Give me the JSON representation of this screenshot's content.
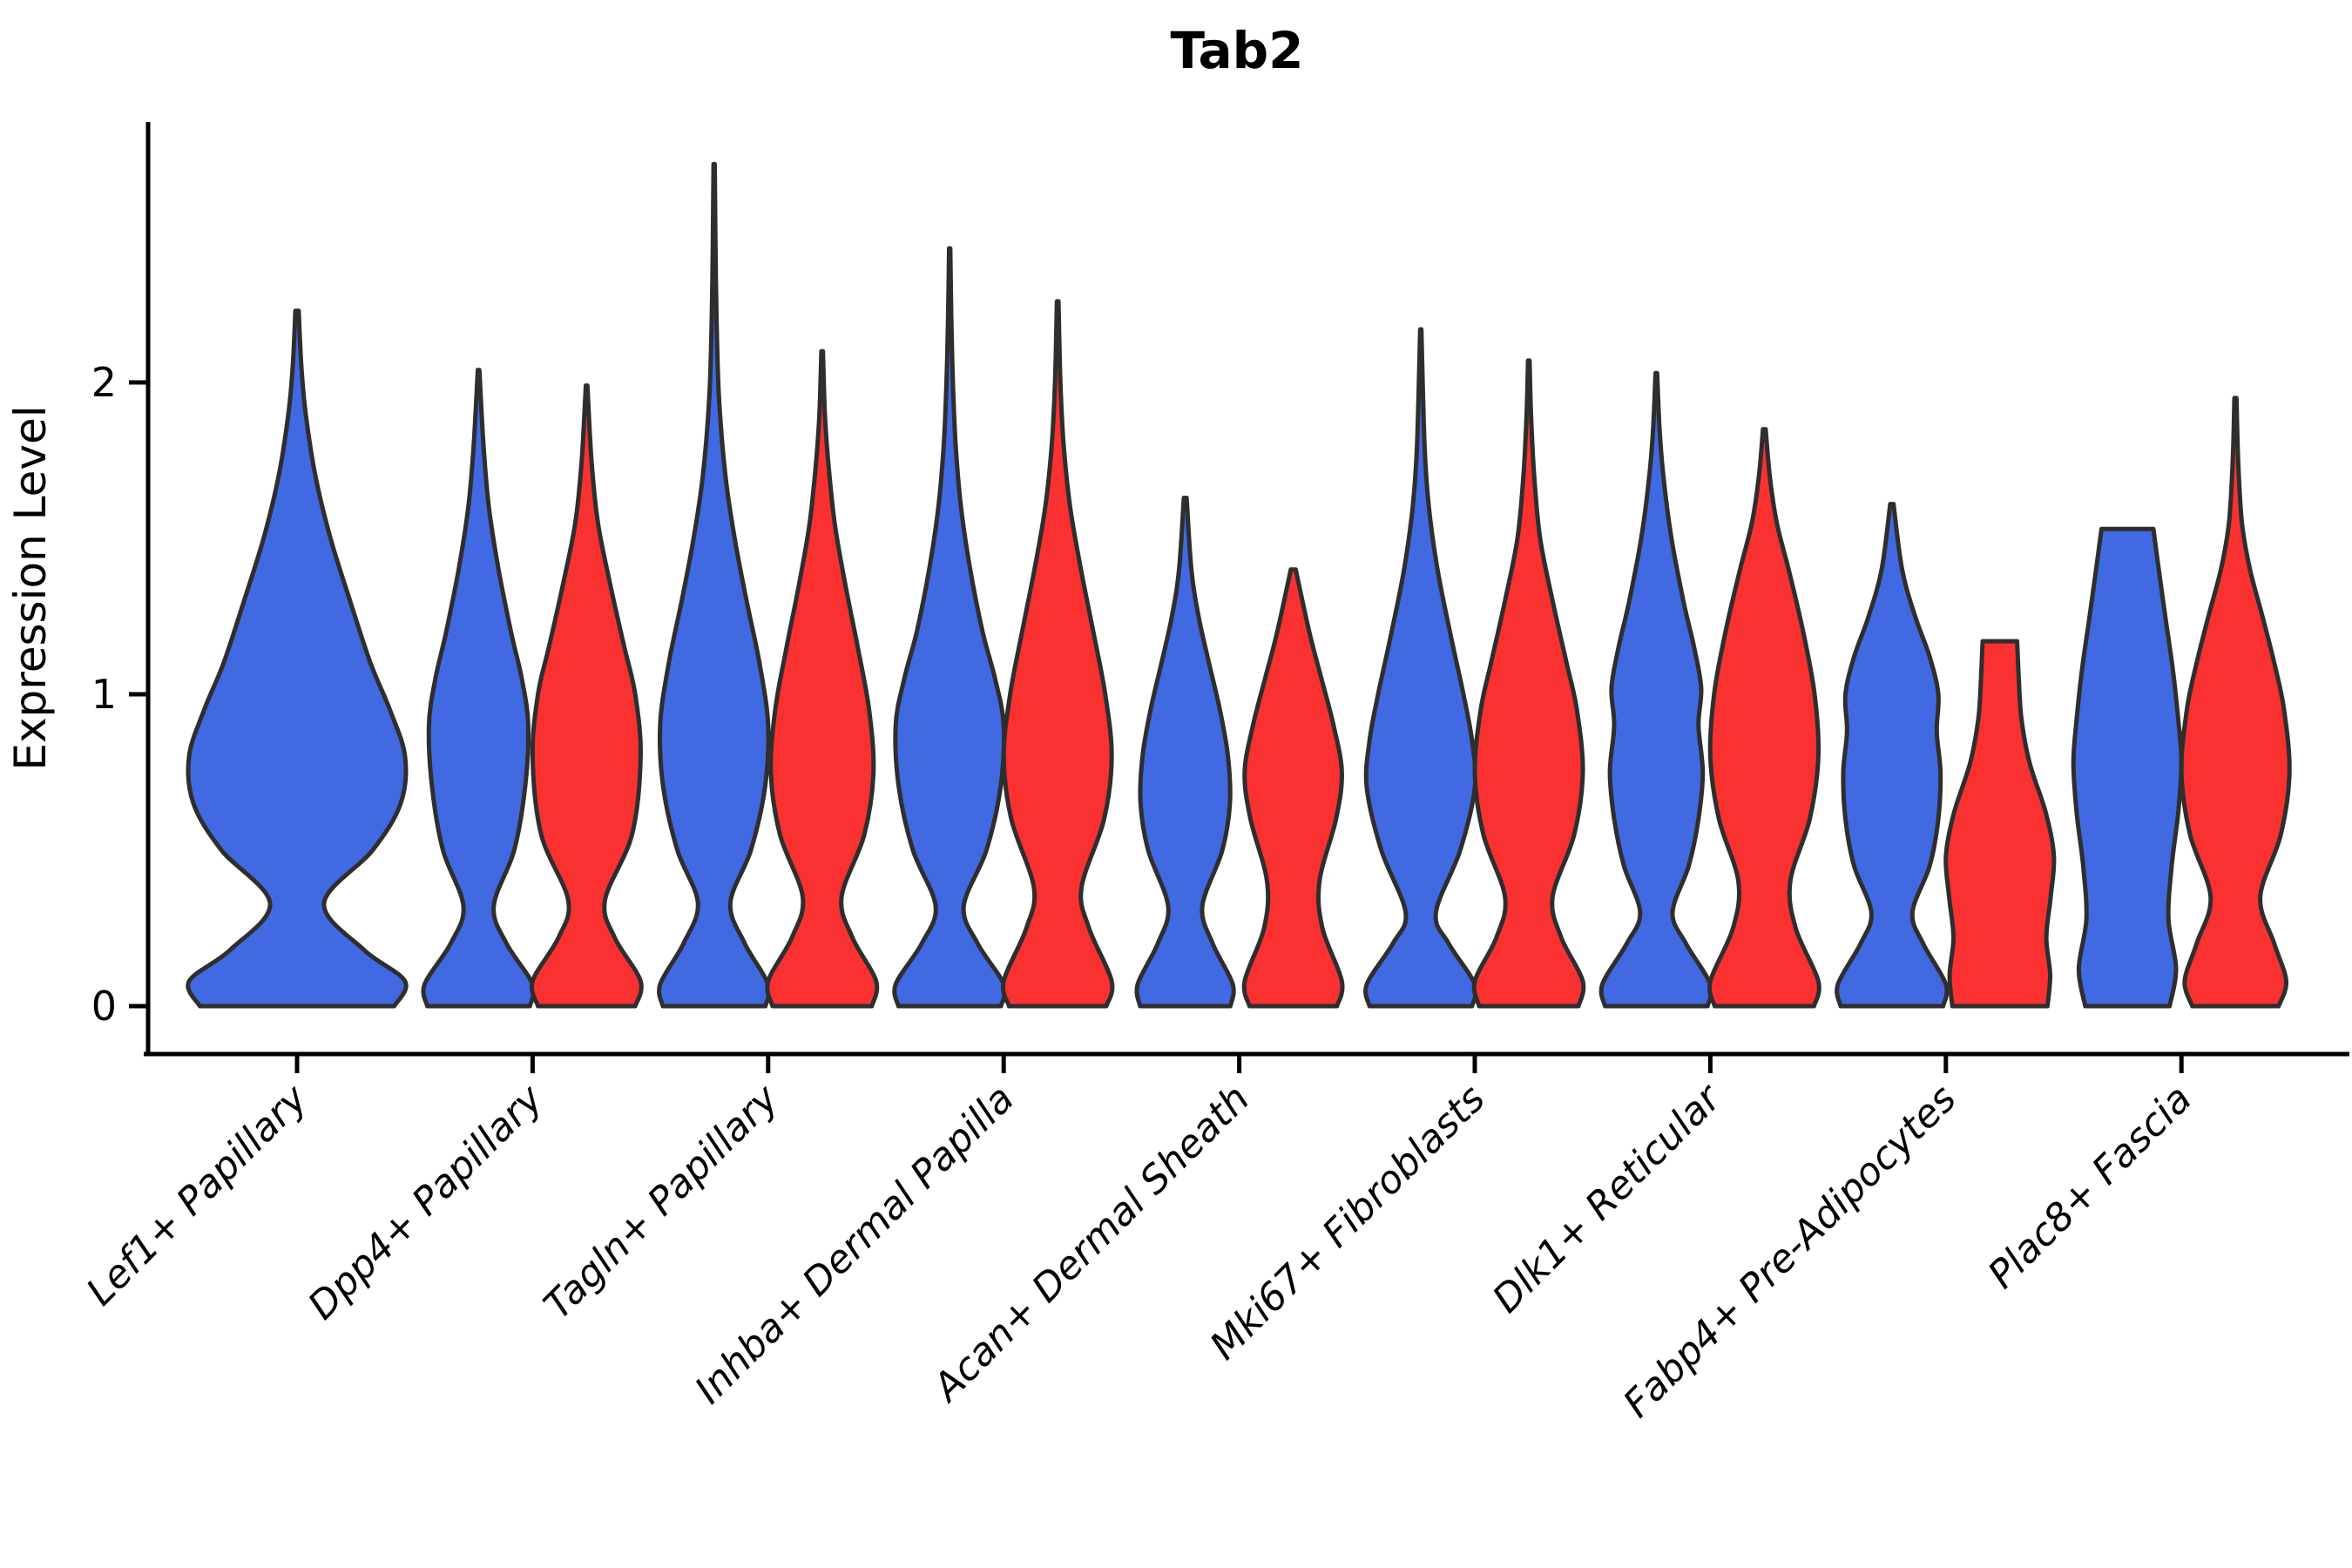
{
  "title": "Tab2",
  "axes": {
    "y_label": "Expression Level",
    "y_ticks": [
      "0",
      "1",
      "2"
    ],
    "y_tick_values": [
      0,
      1,
      2
    ]
  },
  "colors": {
    "blue_fill": "#4169E1",
    "red_fill": "#F93131",
    "outline": "#2E2E2E",
    "axis": "#000000",
    "background": "#FFFFFF"
  },
  "chart_data": {
    "type": "violin",
    "title": "Tab2",
    "xlabel": "",
    "ylabel": "Expression Level",
    "ylim": [
      -0.15,
      2.85
    ],
    "grid": false,
    "legend": "none",
    "split_groups": [
      "blue",
      "red"
    ],
    "categories": [
      "Lef1+ Papillary",
      "Dpp4+ Papillary",
      "Tagln+ Papillary",
      "Inhba+ Dermal Papilla",
      "Acan+ Dermal Sheath",
      "Mki67+ Fibroblasts",
      "Dlk1+ Reticular",
      "Fabp4+ Pre-Adipocytes",
      "Plac8+ Fascia"
    ],
    "profile_format": "pairs of [expression_value, half_width_fraction_of_max]",
    "violins": [
      {
        "category_index": 0,
        "category": "Lef1+ Papillary",
        "group": "blue",
        "max_expression": 2.23,
        "width_scale": 2.0,
        "single": true,
        "profile": [
          [
            0,
            0.9
          ],
          [
            0.08,
            1.0
          ],
          [
            0.18,
            0.62
          ],
          [
            0.33,
            0.25
          ],
          [
            0.5,
            0.7
          ],
          [
            0.65,
            0.96
          ],
          [
            0.8,
            1.0
          ],
          [
            0.95,
            0.86
          ],
          [
            1.1,
            0.68
          ],
          [
            1.3,
            0.49
          ],
          [
            1.5,
            0.31
          ],
          [
            1.7,
            0.17
          ],
          [
            1.9,
            0.08
          ],
          [
            2.05,
            0.04
          ],
          [
            2.23,
            0.015
          ]
        ]
      },
      {
        "category_index": 1,
        "category": "Dpp4+ Papillary",
        "group": "blue",
        "max_expression": 2.04,
        "width_scale": 1.0,
        "single": false,
        "profile": [
          [
            0,
            0.95
          ],
          [
            0.07,
            1.0
          ],
          [
            0.2,
            0.52
          ],
          [
            0.32,
            0.28
          ],
          [
            0.5,
            0.66
          ],
          [
            0.7,
            0.86
          ],
          [
            0.9,
            0.92
          ],
          [
            1.05,
            0.8
          ],
          [
            1.2,
            0.6
          ],
          [
            1.4,
            0.37
          ],
          [
            1.6,
            0.19
          ],
          [
            1.8,
            0.09
          ],
          [
            2.04,
            0.015
          ]
        ]
      },
      {
        "category_index": 1,
        "category": "Dpp4+ Papillary",
        "group": "red",
        "max_expression": 1.99,
        "width_scale": 1.0,
        "single": false,
        "profile": [
          [
            0,
            0.9
          ],
          [
            0.08,
            1.0
          ],
          [
            0.22,
            0.52
          ],
          [
            0.34,
            0.34
          ],
          [
            0.55,
            0.84
          ],
          [
            0.8,
            1.0
          ],
          [
            1.0,
            0.9
          ],
          [
            1.15,
            0.7
          ],
          [
            1.35,
            0.44
          ],
          [
            1.55,
            0.21
          ],
          [
            1.75,
            0.09
          ],
          [
            1.99,
            0.015
          ]
        ]
      },
      {
        "category_index": 2,
        "category": "Tagln+ Papillary",
        "group": "blue",
        "max_expression": 2.7,
        "width_scale": 1.0,
        "single": false,
        "profile": [
          [
            0,
            0.95
          ],
          [
            0.07,
            1.0
          ],
          [
            0.2,
            0.57
          ],
          [
            0.33,
            0.3
          ],
          [
            0.5,
            0.68
          ],
          [
            0.7,
            0.94
          ],
          [
            0.9,
            1.0
          ],
          [
            1.1,
            0.84
          ],
          [
            1.3,
            0.6
          ],
          [
            1.5,
            0.38
          ],
          [
            1.7,
            0.21
          ],
          [
            1.95,
            0.09
          ],
          [
            2.2,
            0.045
          ],
          [
            2.45,
            0.025
          ],
          [
            2.7,
            0.012
          ]
        ]
      },
      {
        "category_index": 2,
        "category": "Tagln+ Papillary",
        "group": "red",
        "max_expression": 2.1,
        "width_scale": 1.0,
        "single": false,
        "profile": [
          [
            0,
            0.92
          ],
          [
            0.08,
            1.0
          ],
          [
            0.22,
            0.56
          ],
          [
            0.35,
            0.36
          ],
          [
            0.55,
            0.78
          ],
          [
            0.75,
            0.95
          ],
          [
            0.95,
            0.87
          ],
          [
            1.15,
            0.66
          ],
          [
            1.35,
            0.43
          ],
          [
            1.55,
            0.23
          ],
          [
            1.75,
            0.11
          ],
          [
            1.9,
            0.05
          ],
          [
            2.1,
            0.015
          ]
        ]
      },
      {
        "category_index": 3,
        "category": "Inhba+ Dermal Papilla",
        "group": "blue",
        "max_expression": 2.43,
        "width_scale": 1.0,
        "single": false,
        "profile": [
          [
            0,
            0.95
          ],
          [
            0.07,
            1.0
          ],
          [
            0.2,
            0.52
          ],
          [
            0.32,
            0.26
          ],
          [
            0.5,
            0.68
          ],
          [
            0.7,
            0.94
          ],
          [
            0.9,
            1.0
          ],
          [
            1.05,
            0.84
          ],
          [
            1.2,
            0.61
          ],
          [
            1.4,
            0.38
          ],
          [
            1.6,
            0.21
          ],
          [
            1.8,
            0.11
          ],
          [
            2.0,
            0.06
          ],
          [
            2.2,
            0.03
          ],
          [
            2.43,
            0.012
          ]
        ]
      },
      {
        "category_index": 3,
        "category": "Inhba+ Dermal Papilla",
        "group": "red",
        "max_expression": 2.26,
        "width_scale": 1.0,
        "single": false,
        "profile": [
          [
            0,
            0.9
          ],
          [
            0.08,
            1.0
          ],
          [
            0.25,
            0.58
          ],
          [
            0.38,
            0.44
          ],
          [
            0.6,
            0.86
          ],
          [
            0.8,
            1.0
          ],
          [
            1.0,
            0.88
          ],
          [
            1.2,
            0.66
          ],
          [
            1.4,
            0.43
          ],
          [
            1.6,
            0.23
          ],
          [
            1.8,
            0.11
          ],
          [
            2.0,
            0.05
          ],
          [
            2.26,
            0.015
          ]
        ]
      },
      {
        "category_index": 4,
        "category": "Acan+ Dermal Sheath",
        "group": "blue",
        "max_expression": 1.63,
        "width_scale": 0.88,
        "single": false,
        "profile": [
          [
            0,
            0.95
          ],
          [
            0.07,
            1.0
          ],
          [
            0.2,
            0.58
          ],
          [
            0.32,
            0.36
          ],
          [
            0.5,
            0.78
          ],
          [
            0.65,
            0.94
          ],
          [
            0.8,
            0.9
          ],
          [
            0.95,
            0.73
          ],
          [
            1.1,
            0.5
          ],
          [
            1.25,
            0.28
          ],
          [
            1.4,
            0.13
          ],
          [
            1.63,
            0.03
          ]
        ]
      },
      {
        "category_index": 4,
        "category": "Acan+ Dermal Sheath",
        "group": "red",
        "max_expression": 1.4,
        "width_scale": 0.9,
        "single": false,
        "profile": [
          [
            0,
            0.9
          ],
          [
            0.08,
            1.0
          ],
          [
            0.25,
            0.6
          ],
          [
            0.4,
            0.54
          ],
          [
            0.6,
            0.88
          ],
          [
            0.75,
            1.0
          ],
          [
            0.9,
            0.83
          ],
          [
            1.05,
            0.58
          ],
          [
            1.2,
            0.33
          ],
          [
            1.4,
            0.05
          ]
        ]
      },
      {
        "category_index": 5,
        "category": "Mki67+ Fibroblasts",
        "group": "blue",
        "max_expression": 2.17,
        "width_scale": 1.0,
        "single": false,
        "profile": [
          [
            0,
            0.95
          ],
          [
            0.07,
            1.0
          ],
          [
            0.2,
            0.52
          ],
          [
            0.3,
            0.28
          ],
          [
            0.5,
            0.73
          ],
          [
            0.7,
            1.0
          ],
          [
            0.85,
            0.95
          ],
          [
            1.0,
            0.79
          ],
          [
            1.2,
            0.54
          ],
          [
            1.4,
            0.31
          ],
          [
            1.6,
            0.15
          ],
          [
            1.8,
            0.07
          ],
          [
            2.17,
            0.012
          ]
        ]
      },
      {
        "category_index": 5,
        "category": "Mki67+ Fibroblasts",
        "group": "red",
        "max_expression": 2.07,
        "width_scale": 1.0,
        "single": false,
        "profile": [
          [
            0,
            0.92
          ],
          [
            0.08,
            1.0
          ],
          [
            0.22,
            0.6
          ],
          [
            0.35,
            0.44
          ],
          [
            0.55,
            0.84
          ],
          [
            0.75,
            1.0
          ],
          [
            0.95,
            0.89
          ],
          [
            1.1,
            0.7
          ],
          [
            1.3,
            0.44
          ],
          [
            1.5,
            0.21
          ],
          [
            1.7,
            0.1
          ],
          [
            1.9,
            0.04
          ],
          [
            2.07,
            0.015
          ]
        ]
      },
      {
        "category_index": 6,
        "category": "Dlk1+ Reticular",
        "group": "blue",
        "max_expression": 2.03,
        "width_scale": 1.0,
        "single": false,
        "profile": [
          [
            0,
            0.95
          ],
          [
            0.07,
            1.0
          ],
          [
            0.2,
            0.55
          ],
          [
            0.3,
            0.3
          ],
          [
            0.45,
            0.6
          ],
          [
            0.6,
            0.78
          ],
          [
            0.75,
            0.86
          ],
          [
            0.9,
            0.78
          ],
          [
            1.02,
            0.83
          ],
          [
            1.15,
            0.7
          ],
          [
            1.3,
            0.5
          ],
          [
            1.5,
            0.28
          ],
          [
            1.7,
            0.13
          ],
          [
            1.85,
            0.06
          ],
          [
            2.03,
            0.015
          ]
        ]
      },
      {
        "category_index": 6,
        "category": "Dlk1+ Reticular",
        "group": "red",
        "max_expression": 1.85,
        "width_scale": 1.0,
        "single": false,
        "profile": [
          [
            0,
            0.92
          ],
          [
            0.08,
            1.0
          ],
          [
            0.25,
            0.58
          ],
          [
            0.4,
            0.48
          ],
          [
            0.6,
            0.84
          ],
          [
            0.8,
            1.0
          ],
          [
            1.0,
            0.93
          ],
          [
            1.2,
            0.72
          ],
          [
            1.4,
            0.45
          ],
          [
            1.55,
            0.23
          ],
          [
            1.7,
            0.1
          ],
          [
            1.85,
            0.025
          ]
        ]
      },
      {
        "category_index": 7,
        "category": "Fabp4+ Pre-Adipocytes",
        "group": "blue",
        "max_expression": 1.61,
        "width_scale": 1.0,
        "single": false,
        "profile": [
          [
            0,
            0.95
          ],
          [
            0.07,
            1.0
          ],
          [
            0.2,
            0.58
          ],
          [
            0.3,
            0.38
          ],
          [
            0.45,
            0.7
          ],
          [
            0.6,
            0.86
          ],
          [
            0.75,
            0.9
          ],
          [
            0.88,
            0.83
          ],
          [
            1.0,
            0.86
          ],
          [
            1.12,
            0.7
          ],
          [
            1.25,
            0.43
          ],
          [
            1.4,
            0.19
          ],
          [
            1.61,
            0.03
          ]
        ]
      },
      {
        "category_index": 7,
        "category": "Fabp4+ Pre-Adipocytes",
        "group": "red",
        "max_expression": 1.17,
        "width_scale": 1.0,
        "single": false,
        "flat_top": true,
        "profile": [
          [
            0,
            0.88
          ],
          [
            0.1,
            0.93
          ],
          [
            0.22,
            0.86
          ],
          [
            0.35,
            0.94
          ],
          [
            0.48,
            1.0
          ],
          [
            0.62,
            0.85
          ],
          [
            0.78,
            0.55
          ],
          [
            0.92,
            0.4
          ],
          [
            1.05,
            0.35
          ],
          [
            1.17,
            0.32
          ]
        ]
      },
      {
        "category_index": 8,
        "category": "Plac8+ Fascia",
        "group": "blue",
        "max_expression": 1.53,
        "width_scale": 1.0,
        "single": false,
        "flat_top": true,
        "profile": [
          [
            0,
            0.78
          ],
          [
            0.12,
            0.9
          ],
          [
            0.28,
            0.76
          ],
          [
            0.45,
            0.82
          ],
          [
            0.62,
            0.94
          ],
          [
            0.78,
            1.0
          ],
          [
            0.92,
            0.94
          ],
          [
            1.08,
            0.84
          ],
          [
            1.25,
            0.7
          ],
          [
            1.4,
            0.58
          ],
          [
            1.53,
            0.48
          ]
        ]
      },
      {
        "category_index": 8,
        "category": "Plac8+ Fascia",
        "group": "red",
        "max_expression": 1.95,
        "width_scale": 1.0,
        "single": false,
        "profile": [
          [
            0,
            0.8
          ],
          [
            0.08,
            0.94
          ],
          [
            0.2,
            0.72
          ],
          [
            0.35,
            0.46
          ],
          [
            0.55,
            0.84
          ],
          [
            0.75,
            1.0
          ],
          [
            0.95,
            0.9
          ],
          [
            1.1,
            0.72
          ],
          [
            1.25,
            0.5
          ],
          [
            1.4,
            0.27
          ],
          [
            1.55,
            0.12
          ],
          [
            1.75,
            0.05
          ],
          [
            1.95,
            0.02
          ]
        ]
      }
    ]
  }
}
